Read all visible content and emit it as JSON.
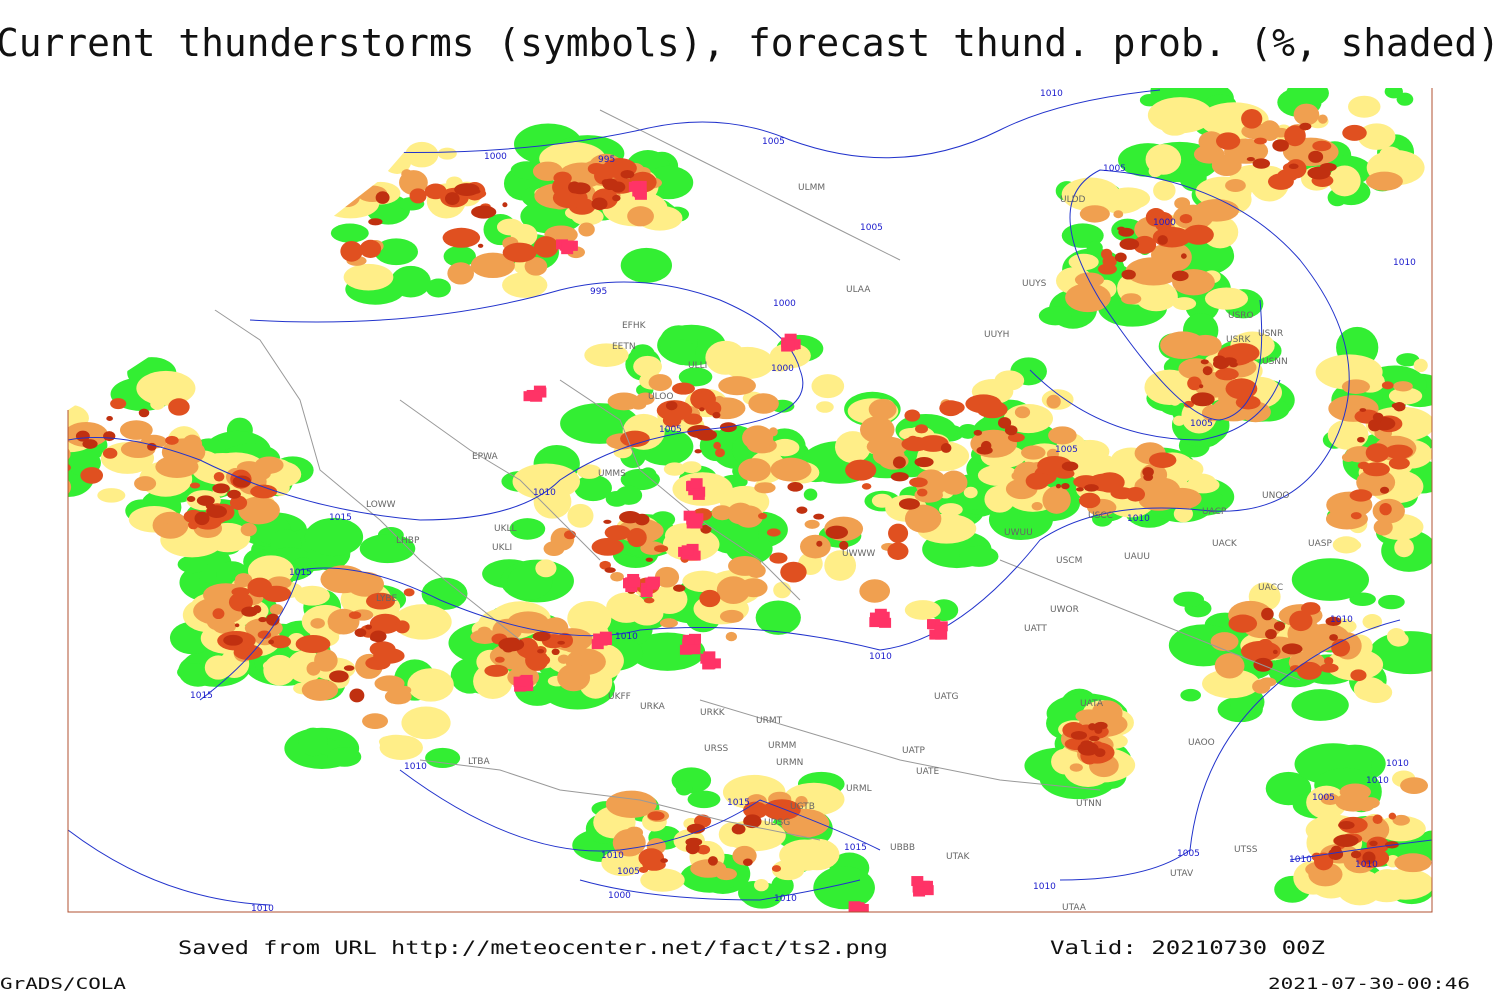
{
  "title": "Current thunderstorms (symbols), forecast thund. prob. (%, shaded)",
  "footer": {
    "saved": "Saved from URL http://meteocenter.net/fact/ts2.png",
    "valid": "Valid: 20210730 00Z",
    "software": "GrADS/COLA",
    "timestamp": "2021-07-30-00:46"
  },
  "stations": [
    "ULMM",
    "ULAA",
    "UUYS",
    "ULDD",
    "UUYH",
    "USRO",
    "USRK",
    "USNR",
    "USNN",
    "EFHK",
    "EETN",
    "ULLI",
    "ULOO",
    "UMMS",
    "EPWA",
    "UKLL",
    "UKLI",
    "LHBP",
    "LOWW",
    "LYBE",
    "USCM",
    "UAUU",
    "UACK",
    "UASP",
    "UACC",
    "UWOR",
    "UATT",
    "UATG",
    "UATA",
    "UAOO",
    "UATE",
    "UATP",
    "URMT",
    "URMM",
    "URMN",
    "URML",
    "UGTB",
    "UDSG",
    "UTAK",
    "UTAA",
    "UTNN",
    "URSS",
    "UKFF",
    "URKA",
    "URKK",
    "UBBB",
    "UTSS",
    "UTAV",
    "LTBA",
    "USCC",
    "UWUU",
    "UACP",
    "UNOO",
    "UWWW"
  ],
  "isobar_labels": [
    "1010",
    "1005",
    "1000",
    "995",
    "1005",
    "995",
    "1000",
    "1000",
    "1005",
    "1010",
    "1015",
    "1015",
    "1015",
    "1010",
    "1010",
    "1005",
    "1005",
    "1010",
    "1010",
    "1000",
    "1005",
    "1010",
    "1010",
    "1015",
    "1015",
    "1010",
    "1005",
    "1000",
    "1010",
    "1010",
    "1010",
    "1005",
    "1005",
    "1010",
    "1010",
    "1010",
    "1010"
  ]
}
